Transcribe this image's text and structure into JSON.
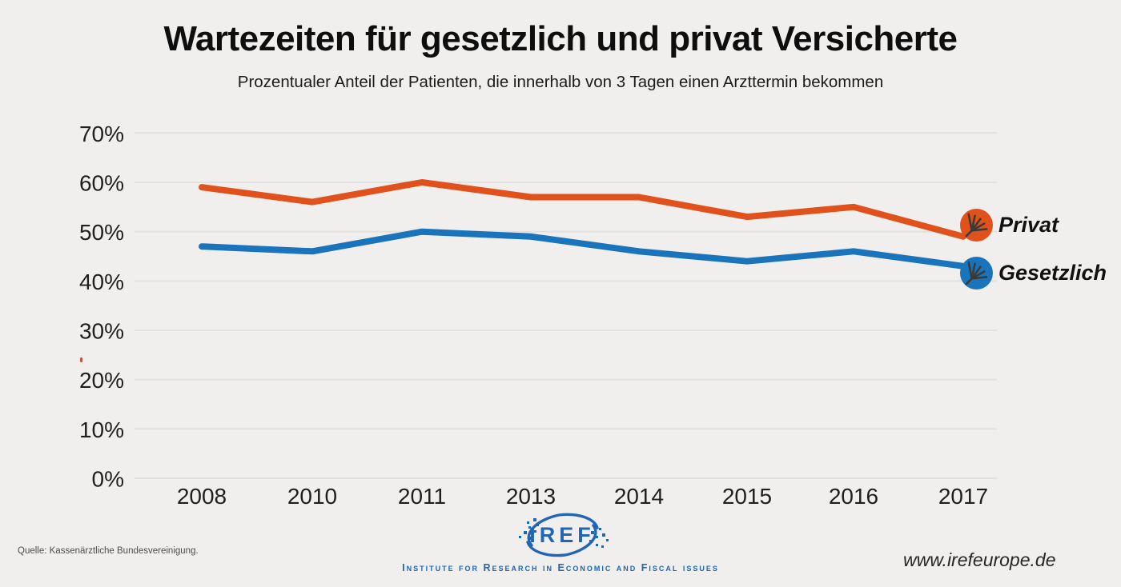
{
  "header": {
    "title": "Wartezeiten für gesetzlich und privat Versicherte",
    "subtitle": "Prozentualer Anteil der Patienten, die innerhalb von 3 Tagen einen Arzttermin bekommen"
  },
  "footer": {
    "source": "Quelle: Kassenärztliche Bundesvereinigung.",
    "logo_text": "IREF",
    "logo_caption": "Institute for Research in Economic and Fiscal issues",
    "url": "www.irefeurope.de"
  },
  "colors": {
    "privat": "#e0511c",
    "gesetzlich": "#1a74bb",
    "background": "#f0efee",
    "gridline": "#e2e1df",
    "logo_blue": "#2066b4"
  },
  "chart_data": {
    "type": "line",
    "title": "Wartezeiten für gesetzlich und privat Versicherte",
    "subtitle": "Prozentualer Anteil der Patienten, die innerhalb von 3 Tagen einen Arzttermin bekommen",
    "categories": [
      "2008",
      "2010",
      "2011",
      "2013",
      "2014",
      "2015",
      "2016",
      "2017"
    ],
    "series": [
      {
        "name": "Privat",
        "color": "#e0511c",
        "values": [
          59,
          56,
          60,
          57,
          57,
          53,
          55,
          49
        ]
      },
      {
        "name": "Gesetzlich",
        "color": "#1a74bb",
        "values": [
          47,
          46,
          50,
          49,
          46,
          44,
          46,
          43
        ]
      }
    ],
    "xlabel": "",
    "ylabel": "",
    "ylim": [
      0,
      70
    ],
    "ytick_step": 10,
    "ytick_suffix": "%",
    "grid": "horizontal",
    "legend_position": "right"
  }
}
